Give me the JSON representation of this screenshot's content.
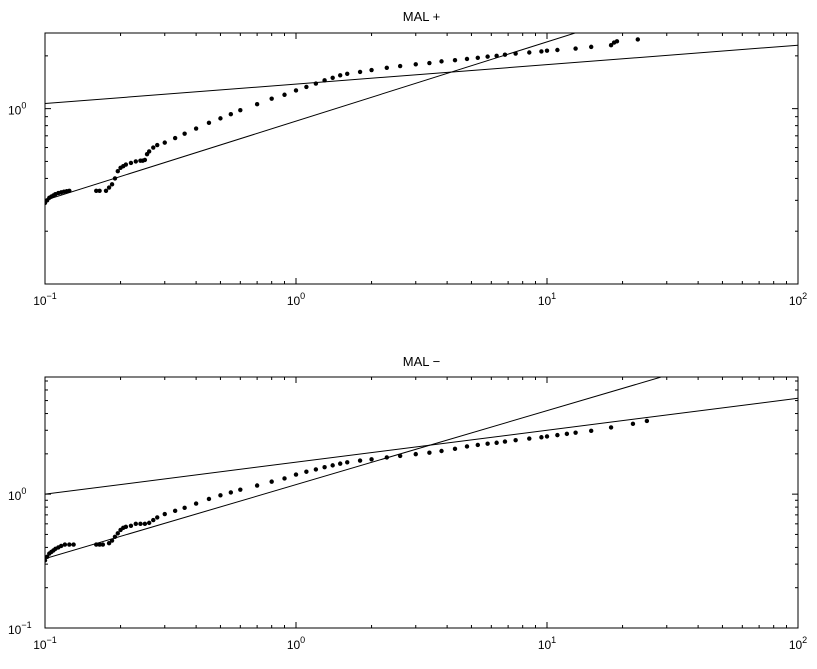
{
  "colors": {
    "marker": "#000000",
    "line": "#000000",
    "background": "#ffffff"
  },
  "chart_data": [
    {
      "type": "scatter",
      "title": "MAL +",
      "xlabel": "",
      "ylabel": "",
      "xscale": "log",
      "yscale": "log",
      "xlim": [
        0.1,
        100
      ],
      "ylim": [
        0.1,
        2.7
      ],
      "x_ticks": [
        {
          "base": "10",
          "exp": "−1",
          "value": 0.1
        },
        {
          "base": "10",
          "exp": "0",
          "value": 1
        },
        {
          "base": "10",
          "exp": "1",
          "value": 10
        },
        {
          "base": "10",
          "exp": "2",
          "value": 100
        }
      ],
      "y_ticks": [
        {
          "base": "10",
          "exp": "0",
          "value": 1
        }
      ],
      "grid": false,
      "series": [
        {
          "kind": "points",
          "points": [
            [
              0.1,
              0.29
            ],
            [
              0.102,
              0.3
            ],
            [
              0.104,
              0.31
            ],
            [
              0.106,
              0.315
            ],
            [
              0.108,
              0.32
            ],
            [
              0.11,
              0.325
            ],
            [
              0.113,
              0.33
            ],
            [
              0.116,
              0.333
            ],
            [
              0.119,
              0.336
            ],
            [
              0.122,
              0.338
            ],
            [
              0.125,
              0.34
            ],
            [
              0.16,
              0.34
            ],
            [
              0.165,
              0.34
            ],
            [
              0.175,
              0.34
            ],
            [
              0.18,
              0.355
            ],
            [
              0.185,
              0.37
            ],
            [
              0.19,
              0.4
            ],
            [
              0.195,
              0.44
            ],
            [
              0.2,
              0.46
            ],
            [
              0.205,
              0.47
            ],
            [
              0.21,
              0.48
            ],
            [
              0.22,
              0.49
            ],
            [
              0.23,
              0.5
            ],
            [
              0.24,
              0.505
            ],
            [
              0.245,
              0.505
            ],
            [
              0.25,
              0.51
            ],
            [
              0.255,
              0.55
            ],
            [
              0.26,
              0.57
            ],
            [
              0.27,
              0.6
            ],
            [
              0.28,
              0.62
            ],
            [
              0.3,
              0.64
            ],
            [
              0.33,
              0.68
            ],
            [
              0.36,
              0.72
            ],
            [
              0.4,
              0.77
            ],
            [
              0.45,
              0.83
            ],
            [
              0.5,
              0.88
            ],
            [
              0.55,
              0.93
            ],
            [
              0.6,
              0.98
            ],
            [
              0.7,
              1.06
            ],
            [
              0.8,
              1.14
            ],
            [
              0.9,
              1.2
            ],
            [
              1.0,
              1.27
            ],
            [
              1.1,
              1.33
            ],
            [
              1.2,
              1.39
            ],
            [
              1.3,
              1.45
            ],
            [
              1.4,
              1.5
            ],
            [
              1.5,
              1.55
            ],
            [
              1.6,
              1.58
            ],
            [
              1.8,
              1.62
            ],
            [
              2.0,
              1.66
            ],
            [
              2.3,
              1.71
            ],
            [
              2.6,
              1.75
            ],
            [
              3.0,
              1.79
            ],
            [
              3.4,
              1.82
            ],
            [
              3.8,
              1.86
            ],
            [
              4.3,
              1.89
            ],
            [
              4.8,
              1.92
            ],
            [
              5.3,
              1.95
            ],
            [
              5.8,
              1.98
            ],
            [
              6.3,
              2.0
            ],
            [
              6.8,
              2.03
            ],
            [
              7.5,
              2.06
            ],
            [
              8.5,
              2.09
            ],
            [
              9.5,
              2.12
            ],
            [
              10.0,
              2.14
            ],
            [
              11.0,
              2.16
            ],
            [
              13.0,
              2.2
            ],
            [
              15.0,
              2.25
            ],
            [
              18.0,
              2.3
            ],
            [
              18.5,
              2.38
            ],
            [
              19.0,
              2.42
            ],
            [
              23.0,
              2.48
            ]
          ]
        },
        {
          "kind": "fit-line",
          "x": [
            0.1,
            100
          ],
          "y": [
            0.3,
            6.8
          ]
        },
        {
          "kind": "fit-line",
          "x": [
            0.1,
            100
          ],
          "y": [
            1.07,
            2.3
          ]
        }
      ]
    },
    {
      "type": "scatter",
      "title": "MAL −",
      "xlabel": "",
      "ylabel": "",
      "xscale": "log",
      "yscale": "log",
      "xlim": [
        0.1,
        100
      ],
      "ylim": [
        0.1,
        7.5
      ],
      "x_ticks": [
        {
          "base": "10",
          "exp": "−1",
          "value": 0.1
        },
        {
          "base": "10",
          "exp": "0",
          "value": 1
        },
        {
          "base": "10",
          "exp": "1",
          "value": 10
        },
        {
          "base": "10",
          "exp": "2",
          "value": 100
        }
      ],
      "y_ticks": [
        {
          "base": "10",
          "exp": "−1",
          "value": 0.1
        },
        {
          "base": "10",
          "exp": "0",
          "value": 1
        }
      ],
      "grid": false,
      "series": [
        {
          "kind": "points",
          "points": [
            [
              0.1,
              0.32
            ],
            [
              0.102,
              0.34
            ],
            [
              0.104,
              0.36
            ],
            [
              0.106,
              0.37
            ],
            [
              0.108,
              0.38
            ],
            [
              0.11,
              0.39
            ],
            [
              0.113,
              0.4
            ],
            [
              0.116,
              0.41
            ],
            [
              0.12,
              0.42
            ],
            [
              0.125,
              0.42
            ],
            [
              0.13,
              0.42
            ],
            [
              0.16,
              0.42
            ],
            [
              0.165,
              0.42
            ],
            [
              0.17,
              0.42
            ],
            [
              0.18,
              0.43
            ],
            [
              0.185,
              0.45
            ],
            [
              0.19,
              0.48
            ],
            [
              0.195,
              0.51
            ],
            [
              0.2,
              0.54
            ],
            [
              0.205,
              0.56
            ],
            [
              0.21,
              0.57
            ],
            [
              0.22,
              0.58
            ],
            [
              0.23,
              0.6
            ],
            [
              0.24,
              0.6
            ],
            [
              0.25,
              0.6
            ],
            [
              0.26,
              0.61
            ],
            [
              0.27,
              0.64
            ],
            [
              0.28,
              0.67
            ],
            [
              0.3,
              0.71
            ],
            [
              0.33,
              0.75
            ],
            [
              0.36,
              0.79
            ],
            [
              0.4,
              0.85
            ],
            [
              0.45,
              0.92
            ],
            [
              0.5,
              0.98
            ],
            [
              0.55,
              1.03
            ],
            [
              0.6,
              1.08
            ],
            [
              0.7,
              1.16
            ],
            [
              0.8,
              1.24
            ],
            [
              0.9,
              1.31
            ],
            [
              1.0,
              1.4
            ],
            [
              1.1,
              1.47
            ],
            [
              1.2,
              1.53
            ],
            [
              1.3,
              1.59
            ],
            [
              1.4,
              1.64
            ],
            [
              1.5,
              1.69
            ],
            [
              1.6,
              1.73
            ],
            [
              1.8,
              1.78
            ],
            [
              2.0,
              1.82
            ],
            [
              2.3,
              1.88
            ],
            [
              2.6,
              1.93
            ],
            [
              3.0,
              1.99
            ],
            [
              3.4,
              2.04
            ],
            [
              3.8,
              2.1
            ],
            [
              4.3,
              2.18
            ],
            [
              4.8,
              2.27
            ],
            [
              5.3,
              2.33
            ],
            [
              5.8,
              2.38
            ],
            [
              6.3,
              2.42
            ],
            [
              6.8,
              2.47
            ],
            [
              7.5,
              2.53
            ],
            [
              8.5,
              2.6
            ],
            [
              9.5,
              2.66
            ],
            [
              10.0,
              2.7
            ],
            [
              11.0,
              2.76
            ],
            [
              12.0,
              2.82
            ],
            [
              13.0,
              2.88
            ],
            [
              15.0,
              2.97
            ],
            [
              18.0,
              3.15
            ],
            [
              22.0,
              3.35
            ],
            [
              25.0,
              3.52
            ]
          ]
        },
        {
          "kind": "fit-line",
          "x": [
            0.1,
            100
          ],
          "y": [
            0.33,
            15.0
          ]
        },
        {
          "kind": "fit-line",
          "x": [
            0.1,
            100
          ],
          "y": [
            1.0,
            5.2
          ]
        }
      ]
    }
  ]
}
